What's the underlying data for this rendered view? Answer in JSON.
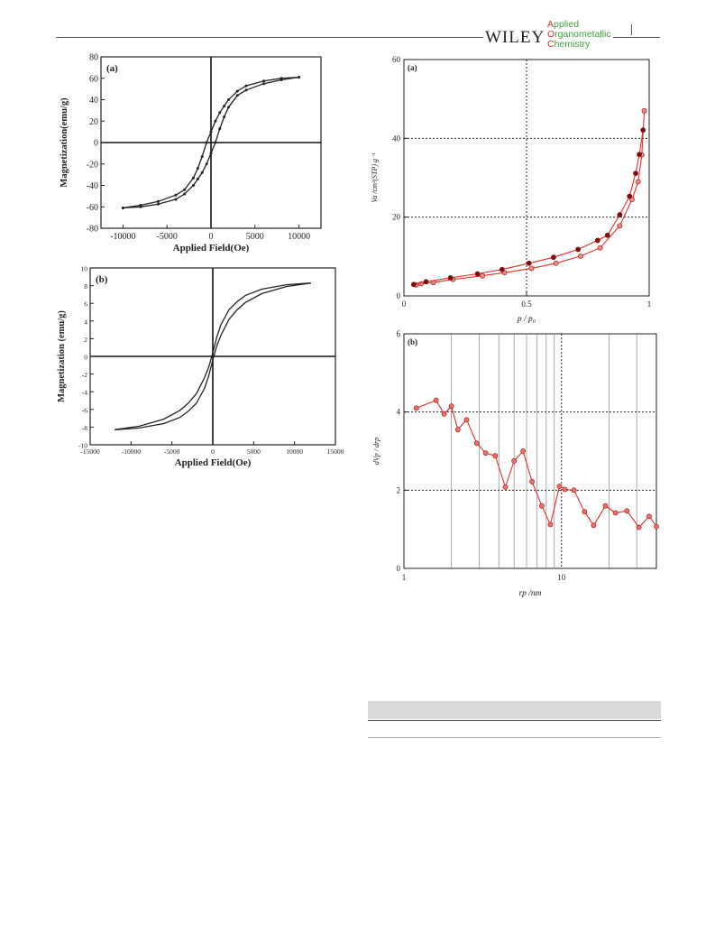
{
  "header": {
    "publisher": "WILEY",
    "journal_lines": [
      {
        "initial": "A",
        "rest": "pplied"
      },
      {
        "initial": "O",
        "rest": "rganometallic"
      },
      {
        "initial": "C",
        "rest": "hemistry"
      }
    ]
  },
  "chart_data": [
    {
      "id": "fig-a-left",
      "type": "line",
      "panel_label": "(a)",
      "xlabel": "Applied Field(Oe)",
      "ylabel": "Magnetization(emu/g)",
      "xlim": [
        -12500,
        12500
      ],
      "ylim": [
        -80,
        80
      ],
      "x_ticks": [
        -10000,
        -5000,
        0,
        5000,
        10000
      ],
      "y_ticks": [
        -80,
        -60,
        -40,
        -20,
        0,
        20,
        40,
        60,
        80
      ],
      "grid": false,
      "series": [
        {
          "style": "dotted",
          "x": [
            -10000,
            -8000,
            -6000,
            -4000,
            -3000,
            -2000,
            -1500,
            -1000,
            -500,
            0,
            500,
            1000,
            1500,
            2000,
            3000,
            4000,
            6000,
            8000,
            10000
          ],
          "y": [
            -61,
            -58.5,
            -55,
            -49,
            -44,
            -33,
            -24,
            -13,
            0,
            10,
            20,
            28,
            34,
            40,
            48,
            53,
            57.5,
            60,
            61
          ]
        },
        {
          "style": "dotted",
          "x": [
            10000,
            8000,
            6000,
            4000,
            3000,
            2000,
            1500,
            1000,
            500,
            0,
            -500,
            -1000,
            -1500,
            -2000,
            -3000,
            -4000,
            -6000,
            -8000,
            -10000
          ],
          "y": [
            61,
            58.5,
            55,
            49,
            44,
            33,
            24,
            13,
            0,
            -10,
            -20,
            -28,
            -34,
            -40,
            -48,
            -53,
            -57.5,
            -60,
            -61
          ]
        }
      ]
    },
    {
      "id": "fig-b-left",
      "type": "line",
      "panel_label": "(b)",
      "xlabel": "Applied Field(Oe)",
      "ylabel": "Magnetization (emu/g)",
      "xlim": [
        -15000,
        15000
      ],
      "ylim": [
        -10,
        10
      ],
      "x_ticks": [
        -15000,
        -10000,
        -5000,
        0,
        5000,
        10000,
        15000
      ],
      "y_ticks": [
        -10,
        -8,
        -6,
        -4,
        -2,
        0,
        2,
        4,
        6,
        8,
        10
      ],
      "grid": false,
      "series": [
        {
          "style": "solid",
          "x": [
            -12000,
            -9000,
            -6000,
            -4000,
            -3000,
            -2000,
            -1000,
            -500,
            0,
            500,
            1000,
            2000,
            3000,
            4000,
            6000,
            9000,
            12000
          ],
          "y": [
            -8.3,
            -7.9,
            -7.1,
            -6.1,
            -5.3,
            -4.2,
            -2.4,
            -1.2,
            0.4,
            2.2,
            3.6,
            5.3,
            6.2,
            6.9,
            7.6,
            8.1,
            8.3
          ]
        },
        {
          "style": "solid",
          "x": [
            12000,
            9000,
            6000,
            4000,
            3000,
            2000,
            1000,
            500,
            0,
            -500,
            -1000,
            -2000,
            -3000,
            -4000,
            -6000,
            -9000,
            -12000
          ],
          "y": [
            8.3,
            7.9,
            7.1,
            6.1,
            5.3,
            4.2,
            2.4,
            1.2,
            -0.4,
            -2.2,
            -3.6,
            -5.3,
            -6.2,
            -6.9,
            -7.6,
            -8.1,
            -8.3
          ]
        }
      ]
    },
    {
      "id": "fig-a-right",
      "type": "scatter",
      "panel_label": "(a)",
      "xlabel": "p / p₀",
      "ylabel": "Va /cm³(STP) g⁻¹",
      "xlim": [
        0,
        1
      ],
      "ylim": [
        0,
        60
      ],
      "x_tick_labels": [
        "0",
        "0.5",
        "1"
      ],
      "y_tick_labels": [
        "0",
        "20",
        "40",
        "60"
      ],
      "grid": true,
      "series": [
        {
          "name": "",
          "marker": "light",
          "x": [
            0.05,
            0.07,
            0.12,
            0.2,
            0.32,
            0.41,
            0.52,
            0.62,
            0.72,
            0.8,
            0.88,
            0.93,
            0.955,
            0.97,
            0.98
          ],
          "y": [
            2.8,
            3.1,
            3.4,
            4.2,
            5.1,
            5.9,
            7.0,
            8.3,
            10.1,
            12.2,
            17.8,
            24.5,
            29.0,
            35.8,
            47.0
          ]
        },
        {
          "name": "",
          "marker": "dark",
          "x": [
            0.04,
            0.09,
            0.19,
            0.3,
            0.4,
            0.51,
            0.61,
            0.71,
            0.79,
            0.83,
            0.88,
            0.92,
            0.945,
            0.96,
            0.975
          ],
          "y": [
            2.9,
            3.6,
            4.6,
            5.6,
            6.7,
            8.3,
            9.8,
            11.8,
            14.1,
            15.4,
            20.6,
            25.3,
            31.1,
            35.9,
            42.1
          ]
        }
      ]
    },
    {
      "id": "fig-b-right",
      "type": "line",
      "panel_label": "(b)",
      "xlabel": "rp /nm",
      "ylabel": "dVp / drp",
      "xscale": "log",
      "xlim": [
        1,
        40
      ],
      "ylim": [
        0,
        6
      ],
      "x_tick_labels": [
        "1",
        "10"
      ],
      "y_tick_labels": [
        "0",
        "2",
        "4",
        "6"
      ],
      "grid": true,
      "series": [
        {
          "name": "",
          "x": [
            1.2,
            1.6,
            1.8,
            2.0,
            2.2,
            2.5,
            2.9,
            3.3,
            3.8,
            4.4,
            5.0,
            5.7,
            6.5,
            7.5,
            8.5,
            9.7,
            10.5,
            12,
            14,
            16,
            19,
            22,
            26,
            31,
            36,
            40
          ],
          "y": [
            4.1,
            4.3,
            3.95,
            4.15,
            3.55,
            3.8,
            3.2,
            2.95,
            2.88,
            2.08,
            2.75,
            3.0,
            2.22,
            1.6,
            1.12,
            2.1,
            2.02,
            2.0,
            1.45,
            1.1,
            1.6,
            1.42,
            1.47,
            1.05,
            1.33,
            1.07
          ]
        }
      ]
    }
  ]
}
